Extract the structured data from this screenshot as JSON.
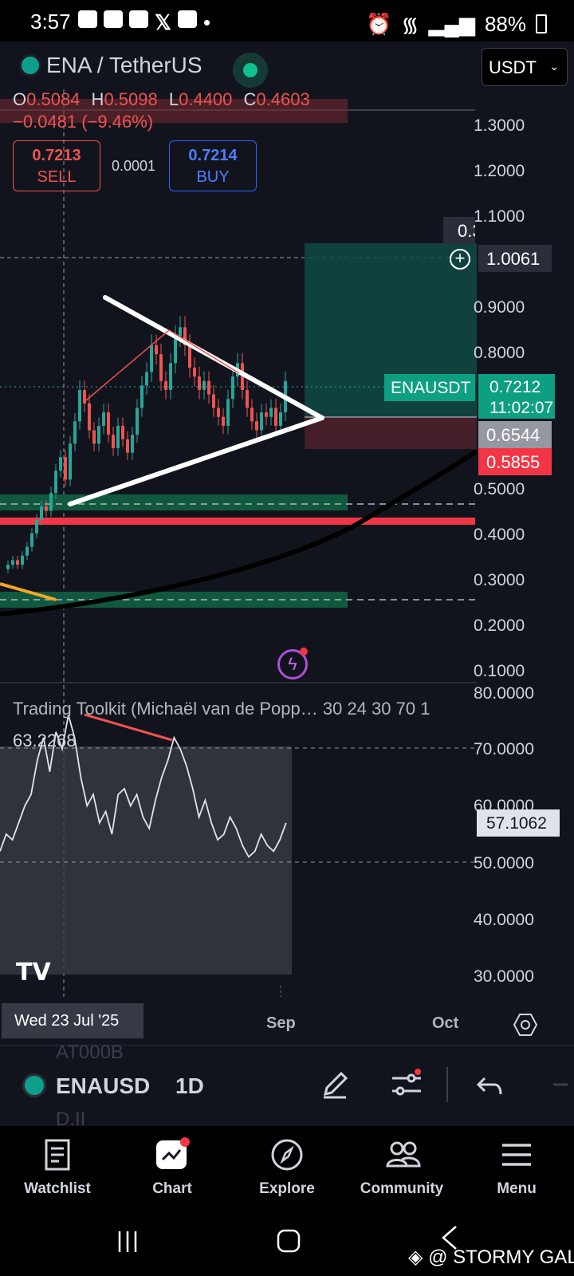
{
  "status_bar": {
    "time": "3:57",
    "battery": "88%"
  },
  "header": {
    "symbol": "ENA / TetherUS",
    "currency": "USDT"
  },
  "ohlc": {
    "o_label": "O",
    "o": "0.5084",
    "h_label": "H",
    "h": "0.5098",
    "l_label": "L",
    "l": "0.4400",
    "c_label": "C",
    "c": "0.4603",
    "change": "−0.0481 (−9.46%)"
  },
  "trade": {
    "sell_price": "0.7213",
    "sell_label": "SELL",
    "spread": "0.0001",
    "buy_price": "0.7214",
    "buy_label": "BUY"
  },
  "price_axis": [
    "1.3000",
    "1.2000",
    "1.1000",
    "0.9000",
    "0.8000",
    "0.5000",
    "0.4000",
    "0.3000",
    "0.2000",
    "0.1000"
  ],
  "price_tags": {
    "crosshair_partial": "0.3",
    "crosshair": "1.0061",
    "symbol_tag": "ENAUSDT",
    "last": "0.7212",
    "countdown": "11:02:07",
    "level1": "0.6544",
    "level2": "0.5855"
  },
  "indicator": {
    "name": "Trading Toolkit (Michaël van de Popp… 30 24 30 70 1",
    "value": "63.2268",
    "axis": [
      "80.0000",
      "70.0000",
      "60.0000",
      "50.0000",
      "40.0000",
      "30.0000"
    ],
    "current": "57.1062"
  },
  "time_axis": {
    "cursor_date": "Wed 23 Jul '25",
    "labels": [
      "Sep",
      "Oct"
    ]
  },
  "toolbar": {
    "symbol": "ENAUSD",
    "interval": "1D",
    "ghost_top": "AT000B",
    "ghost_bottom": "D.II"
  },
  "nav": [
    {
      "label": "Watchlist",
      "icon": "watchlist-icon"
    },
    {
      "label": "Chart",
      "icon": "chart-icon"
    },
    {
      "label": "Explore",
      "icon": "compass-icon"
    },
    {
      "label": "Community",
      "icon": "community-icon"
    },
    {
      "label": "Menu",
      "icon": "menu-icon"
    }
  ],
  "watermark": "@ STORMY GAL",
  "chart_data": {
    "type": "candlestick",
    "symbol": "ENAUSDT",
    "interval": "1D",
    "ylim": [
      0.08,
      1.35
    ],
    "y_ticks": [
      1.3,
      1.2,
      1.1,
      0.9,
      0.8,
      0.5,
      0.4,
      0.3,
      0.2,
      0.1
    ],
    "close_series": [
      0.3,
      0.31,
      0.32,
      0.31,
      0.33,
      0.35,
      0.38,
      0.41,
      0.44,
      0.43,
      0.47,
      0.52,
      0.55,
      0.5,
      0.58,
      0.63,
      0.7,
      0.67,
      0.61,
      0.58,
      0.62,
      0.65,
      0.6,
      0.57,
      0.62,
      0.59,
      0.56,
      0.6,
      0.66,
      0.71,
      0.74,
      0.8,
      0.78,
      0.72,
      0.7,
      0.76,
      0.82,
      0.84,
      0.8,
      0.75,
      0.73,
      0.7,
      0.72,
      0.69,
      0.66,
      0.64,
      0.62,
      0.68,
      0.73,
      0.76,
      0.7,
      0.66,
      0.63,
      0.61,
      0.65,
      0.64,
      0.66,
      0.62,
      0.65,
      0.72
    ],
    "levels": [
      0.6544,
      0.5855,
      0.4603,
      1.0061
    ],
    "rsi": {
      "ylim": [
        30,
        80
      ],
      "current": 57.1062,
      "value": 63.2268
    }
  }
}
